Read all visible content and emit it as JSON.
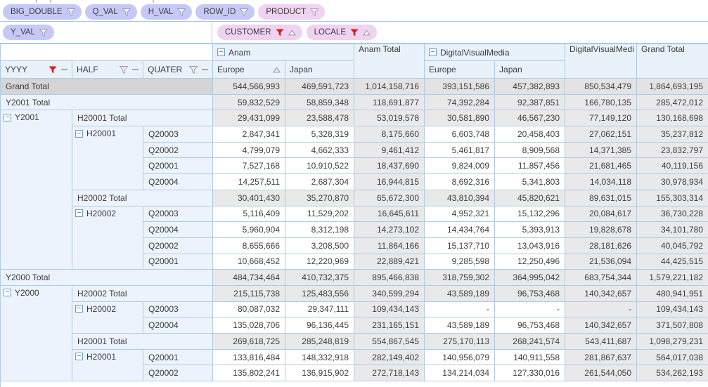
{
  "filter_fields": [
    {
      "label": "BIG_DOUBLE",
      "style": "blue",
      "filtered": false
    },
    {
      "label": "Q_VAL",
      "style": "blue",
      "filtered": false
    },
    {
      "label": "H_VAL",
      "style": "blue",
      "filtered": false
    },
    {
      "label": "ROW_ID",
      "style": "blue",
      "filtered": false
    },
    {
      "label": "PRODUCT",
      "style": "pink",
      "filtered": false
    }
  ],
  "data_field": {
    "label": "Y_VAL",
    "style": "blue",
    "filtered": false
  },
  "column_fields": [
    {
      "label": "CUSTOMER",
      "filtered": true,
      "sorted": "ascending"
    },
    {
      "label": "LOCALE",
      "filtered": true,
      "sorted": "ascending"
    }
  ],
  "row_fields": [
    {
      "label": "YYYY",
      "filtered": true
    },
    {
      "label": "HALF",
      "filtered": false
    },
    {
      "label": "QUATER",
      "filtered": false
    }
  ],
  "column_headers": {
    "anam": {
      "label": "Anam",
      "expanded": true,
      "children": [
        {
          "label": "Europe",
          "sorted": "ascending"
        },
        {
          "label": "Japan",
          "sorted": ""
        }
      ]
    },
    "anam_total": {
      "label": "Anam Total"
    },
    "dvm": {
      "label": "DigitalVisualMedia",
      "expanded": true,
      "children": [
        {
          "label": "Europe",
          "sorted": ""
        },
        {
          "label": "Japan",
          "sorted": ""
        }
      ]
    },
    "dvm_total": {
      "label": "DigitalVisualMedi"
    },
    "grand_total": {
      "label": "Grand Total"
    }
  },
  "icons": {
    "filter_inactive": "funnel-outline",
    "filter_active": "funnel-red-filled",
    "sort_ascending": "triangle-up-outline",
    "collapse": "minus-box",
    "field_dash": "dash"
  },
  "colors": {
    "chip_blue": "#c6c9f7",
    "chip_pink": "#f0d2f2",
    "header_pink": "#f3def5",
    "header_blue": "#e9f1fb",
    "row_label_blue": "#ecf3fc",
    "total_cell_gray": "#e9e9e9",
    "grand_header_gray": "#d4d4d4",
    "border_blue": "#b0cbe5",
    "filter_red": "#e01717"
  },
  "rows": [
    {
      "kind": "grand",
      "label": "Grand Total",
      "values": [
        "544,566,993",
        "469,591,723",
        "1,014,158,716",
        "393,151,586",
        "457,382,893",
        "850,534,479",
        "1,864,693,195"
      ]
    },
    {
      "kind": "year_total",
      "label": "Y2001 Total",
      "values": [
        "59,832,529",
        "58,859,348",
        "118,691,877",
        "74,392,284",
        "92,387,851",
        "166,780,135",
        "285,472,012"
      ]
    },
    {
      "kind": "half_total",
      "year_group": {
        "label": "Y2001",
        "expanded": true,
        "rowspan": 10
      },
      "label": "H20001 Total",
      "values": [
        "29,431,099",
        "23,588,478",
        "53,019,578",
        "30,581,890",
        "46,567,230",
        "77,149,120",
        "130,168,698"
      ]
    },
    {
      "kind": "quarter",
      "half_group": {
        "label": "H20001",
        "expanded": true,
        "rowspan": 4
      },
      "label": "Q20003",
      "values": [
        "2,847,341",
        "5,328,319",
        "8,175,660",
        "6,603,748",
        "20,458,403",
        "27,062,151",
        "35,237,812"
      ]
    },
    {
      "kind": "quarter",
      "label": "Q20002",
      "values": [
        "4,799,079",
        "4,662,333",
        "9,461,412",
        "5,461,817",
        "8,909,568",
        "14,371,385",
        "23,832,797"
      ]
    },
    {
      "kind": "quarter",
      "label": "Q20001",
      "values": [
        "7,527,168",
        "10,910,522",
        "18,437,690",
        "9,824,009",
        "11,857,456",
        "21,681,465",
        "40,119,156"
      ]
    },
    {
      "kind": "quarter",
      "label": "Q20004",
      "values": [
        "14,257,511",
        "2,687,304",
        "16,944,815",
        "8,692,316",
        "5,341,803",
        "14,034,118",
        "30,978,934"
      ]
    },
    {
      "kind": "half_total",
      "label": "H20002 Total",
      "values": [
        "30,401,430",
        "35,270,870",
        "65,672,300",
        "43,810,394",
        "45,820,621",
        "89,631,015",
        "155,303,314"
      ]
    },
    {
      "kind": "quarter",
      "half_group": {
        "label": "H20002",
        "expanded": true,
        "rowspan": 4
      },
      "label": "Q20003",
      "values": [
        "5,116,409",
        "11,529,202",
        "16,645,611",
        "4,952,321",
        "15,132,296",
        "20,084,617",
        "36,730,228"
      ]
    },
    {
      "kind": "quarter",
      "label": "Q20004",
      "values": [
        "5,960,904",
        "8,312,198",
        "14,273,102",
        "14,434,764",
        "5,393,913",
        "19,828,678",
        "34,101,780"
      ]
    },
    {
      "kind": "quarter",
      "label": "Q20002",
      "values": [
        "8,655,666",
        "3,208,500",
        "11,864,166",
        "15,137,710",
        "13,043,916",
        "28,181,626",
        "40,045,792"
      ]
    },
    {
      "kind": "quarter",
      "label": "Q20001",
      "values": [
        "10,668,452",
        "12,220,969",
        "22,889,421",
        "9,285,598",
        "12,250,496",
        "21,536,094",
        "44,425,515"
      ]
    },
    {
      "kind": "year_total",
      "label": "Y2000 Total",
      "values": [
        "484,734,464",
        "410,732,375",
        "895,466,838",
        "318,759,302",
        "364,995,042",
        "683,754,344",
        "1,579,221,182"
      ]
    },
    {
      "kind": "half_total",
      "year_group": {
        "label": "Y2000",
        "expanded": true,
        "rowspan": 6
      },
      "label": "H20002 Total",
      "values": [
        "215,115,738",
        "125,483,556",
        "340,599,294",
        "43,589,189",
        "96,753,468",
        "140,342,657",
        "480,941,951"
      ]
    },
    {
      "kind": "quarter",
      "half_group": {
        "label": "H20002",
        "expanded": true,
        "rowspan": 2
      },
      "label": "Q20003",
      "values": [
        "80,087,032",
        "29,347,111",
        "109,434,143",
        "-",
        "-",
        "-",
        "109,434,143"
      ]
    },
    {
      "kind": "quarter",
      "label": "Q20004",
      "values": [
        "135,028,706",
        "96,136,445",
        "231,165,151",
        "43,589,189",
        "96,753,468",
        "140,342,657",
        "371,507,808"
      ]
    },
    {
      "kind": "half_total",
      "label": "H20001 Total",
      "values": [
        "269,618,725",
        "285,248,819",
        "554,867,545",
        "275,170,113",
        "268,241,574",
        "543,411,687",
        "1,098,279,231"
      ]
    },
    {
      "kind": "quarter",
      "half_group": {
        "label": "H20001",
        "expanded": true,
        "rowspan": 2
      },
      "label": "Q20001",
      "values": [
        "133,816,484",
        "148,332,918",
        "282,149,402",
        "140,956,079",
        "140,911,558",
        "281,867,637",
        "564,017,038"
      ]
    },
    {
      "kind": "quarter",
      "label": "Q20002",
      "values": [
        "135,802,241",
        "136,915,902",
        "272,718,143",
        "134,214,034",
        "127,330,016",
        "261,544,050",
        "534,262,193"
      ]
    }
  ]
}
